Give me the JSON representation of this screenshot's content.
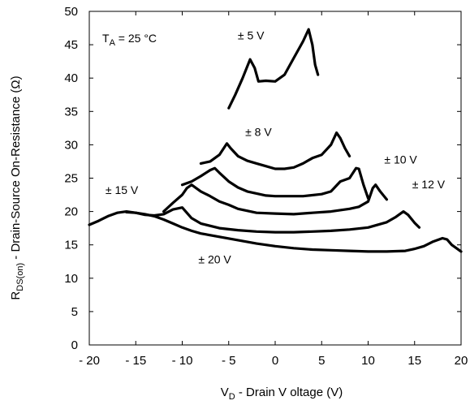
{
  "chart_data": {
    "type": "line",
    "title": "",
    "xlabel": {
      "main": "V",
      "sub": "D",
      "rest": " - Drain V oltage (V)"
    },
    "ylabel": {
      "main": "R",
      "sub": "DS(on)",
      "rest": " -  Drain-Source On-Resistance (Ω)"
    },
    "xlim": [
      -20,
      20
    ],
    "ylim": [
      0,
      50
    ],
    "x_ticks": [
      -20,
      -15,
      -10,
      -5,
      0,
      5,
      10,
      15,
      20
    ],
    "x_tick_labels": [
      "- 20",
      "- 15",
      "- 10",
      "- 5",
      "0",
      "5",
      "10",
      "15",
      "20"
    ],
    "y_ticks": [
      0,
      5,
      10,
      15,
      20,
      25,
      30,
      35,
      40,
      45,
      50
    ],
    "y_tick_labels": [
      "0",
      "5",
      "10",
      "15",
      "20",
      "25",
      "30",
      "35",
      "40",
      "45",
      "50"
    ],
    "grid": false,
    "annotation": {
      "main": "T",
      "sub": "A",
      "rest": " = 25 °C"
    },
    "series": [
      {
        "name": "± 5 V",
        "points": [
          [
            -5,
            35.5
          ],
          [
            -4.3,
            37.5
          ],
          [
            -3.5,
            40
          ],
          [
            -2.7,
            42.8
          ],
          [
            -2.2,
            41.5
          ],
          [
            -1.8,
            39.5
          ],
          [
            -1,
            39.6
          ],
          [
            0,
            39.5
          ],
          [
            1,
            40.5
          ],
          [
            2,
            43
          ],
          [
            3,
            45.5
          ],
          [
            3.6,
            47.3
          ],
          [
            4,
            45
          ],
          [
            4.3,
            42
          ],
          [
            4.6,
            40.5
          ]
        ],
        "label_at": [
          -2.6,
          45.8
        ]
      },
      {
        "name": "± 8 V",
        "points": [
          [
            -8,
            27.2
          ],
          [
            -7,
            27.5
          ],
          [
            -6,
            28.5
          ],
          [
            -5.2,
            30.2
          ],
          [
            -4.8,
            29.5
          ],
          [
            -4,
            28.3
          ],
          [
            -3,
            27.6
          ],
          [
            -2,
            27.2
          ],
          [
            -1,
            26.8
          ],
          [
            0,
            26.4
          ],
          [
            1,
            26.4
          ],
          [
            2,
            26.6
          ],
          [
            3,
            27.2
          ],
          [
            4,
            28
          ],
          [
            5,
            28.5
          ],
          [
            6,
            30
          ],
          [
            6.6,
            31.8
          ],
          [
            7,
            31
          ],
          [
            7.5,
            29.5
          ],
          [
            8,
            28.3
          ]
        ],
        "label_at": [
          -1.8,
          31.3
        ]
      },
      {
        "name": "± 10 V",
        "points": [
          [
            -10,
            24
          ],
          [
            -9,
            24.5
          ],
          [
            -8,
            25.3
          ],
          [
            -7,
            26.2
          ],
          [
            -6.5,
            26.5
          ],
          [
            -6,
            25.8
          ],
          [
            -5,
            24.5
          ],
          [
            -4,
            23.6
          ],
          [
            -3,
            23
          ],
          [
            -2,
            22.7
          ],
          [
            -1,
            22.4
          ],
          [
            0,
            22.3
          ],
          [
            1,
            22.3
          ],
          [
            3,
            22.3
          ],
          [
            5,
            22.6
          ],
          [
            6,
            23
          ],
          [
            7,
            24.5
          ],
          [
            8,
            25
          ],
          [
            8.7,
            26.5
          ],
          [
            9,
            26.4
          ],
          [
            9.5,
            24
          ],
          [
            10,
            22
          ]
        ],
        "label_at": [
          13.5,
          27.2
        ]
      },
      {
        "name": "± 12 V",
        "points": [
          [
            -12,
            20
          ],
          [
            -11,
            21.3
          ],
          [
            -10,
            22.5
          ],
          [
            -9.5,
            23.5
          ],
          [
            -9,
            24
          ],
          [
            -8,
            23
          ],
          [
            -7,
            22.3
          ],
          [
            -6,
            21.5
          ],
          [
            -5,
            21
          ],
          [
            -4,
            20.4
          ],
          [
            -2,
            19.8
          ],
          [
            0,
            19.7
          ],
          [
            2,
            19.6
          ],
          [
            4,
            19.8
          ],
          [
            6,
            20
          ],
          [
            8,
            20.4
          ],
          [
            9,
            20.7
          ],
          [
            10,
            21.5
          ],
          [
            10.5,
            23.5
          ],
          [
            10.8,
            24
          ],
          [
            11.3,
            23
          ],
          [
            12,
            21.8
          ]
        ],
        "label_at": [
          16.5,
          23.5
        ]
      },
      {
        "name": "± 15 V",
        "points": [
          [
            -20,
            18
          ],
          [
            -19,
            18.6
          ],
          [
            -18,
            19.3
          ],
          [
            -17,
            19.8
          ],
          [
            -16,
            20
          ],
          [
            -15,
            19.8
          ],
          [
            -14,
            19.5
          ],
          [
            -13,
            19.4
          ],
          [
            -12,
            19.6
          ],
          [
            -11,
            20.3
          ],
          [
            -10,
            20.6
          ],
          [
            -9.5,
            19.8
          ],
          [
            -9,
            19
          ],
          [
            -8,
            18.2
          ],
          [
            -6,
            17.5
          ],
          [
            -4,
            17.2
          ],
          [
            -2,
            17
          ],
          [
            0,
            16.9
          ],
          [
            2,
            16.9
          ],
          [
            4,
            17
          ],
          [
            6,
            17.1
          ],
          [
            8,
            17.3
          ],
          [
            10,
            17.6
          ],
          [
            12,
            18.4
          ],
          [
            13,
            19.2
          ],
          [
            13.8,
            20
          ],
          [
            14.3,
            19.5
          ],
          [
            15,
            18.3
          ],
          [
            15.5,
            17.6
          ]
        ],
        "label_at": [
          -16.5,
          22.6
        ]
      },
      {
        "name": "± 20 V",
        "points": [
          [
            -16,
            19.9
          ],
          [
            -15,
            19.8
          ],
          [
            -14,
            19.6
          ],
          [
            -13,
            19.3
          ],
          [
            -12,
            18.8
          ],
          [
            -11,
            18.2
          ],
          [
            -10,
            17.6
          ],
          [
            -9,
            17.1
          ],
          [
            -8,
            16.7
          ],
          [
            -6,
            16.2
          ],
          [
            -4,
            15.7
          ],
          [
            -2,
            15.2
          ],
          [
            0,
            14.8
          ],
          [
            2,
            14.5
          ],
          [
            4,
            14.3
          ],
          [
            6,
            14.2
          ],
          [
            8,
            14.1
          ],
          [
            10,
            14
          ],
          [
            12,
            14
          ],
          [
            14,
            14.1
          ],
          [
            15,
            14.4
          ],
          [
            16,
            14.8
          ],
          [
            17,
            15.5
          ],
          [
            18,
            16
          ],
          [
            18.5,
            15.8
          ],
          [
            19,
            15
          ],
          [
            19.5,
            14.5
          ],
          [
            20,
            14
          ]
        ],
        "label_at": [
          -6.5,
          12.2
        ]
      }
    ]
  }
}
